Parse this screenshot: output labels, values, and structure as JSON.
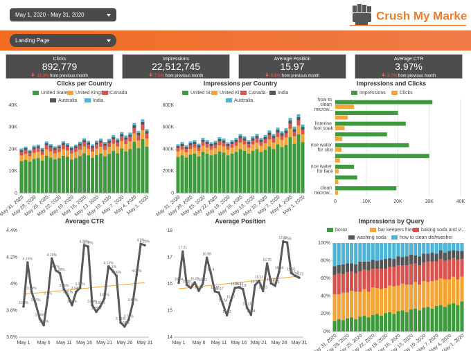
{
  "date_range": "May 1, 2020 - May 31, 2020",
  "logo": "Crush My Market",
  "filter": "Landing Page",
  "scorecards": [
    {
      "title": "Clicks",
      "value": "892,779",
      "delta": "-11.3%",
      "note": "from previous month"
    },
    {
      "title": "Impressions",
      "value": "22,512,745",
      "delta": "-7.5%",
      "note": "from previous month"
    },
    {
      "title": "Average Position",
      "value": "15.97",
      "delta": "-5.6%",
      "note": "from previous month"
    },
    {
      "title": "Average CTR",
      "value": "3.97%",
      "delta": "-3.7%",
      "note": "from previous month"
    }
  ],
  "chart_data": [
    {
      "type": "bar",
      "stacked": true,
      "title": "Clicks per Country",
      "categories": [
        "May 31, 2020",
        null,
        null,
        "May 28, 2020",
        null,
        null,
        "May 25, 2020",
        null,
        null,
        "May 22, 2020",
        null,
        null,
        "May 19, 2020",
        null,
        null,
        "May 16, 2020",
        null,
        null,
        "May 13, 2020",
        null,
        null,
        "May 10, 2020",
        null,
        null,
        "May 7, 2020",
        null,
        null,
        "May 4, 2020",
        null,
        null,
        "May 1, 2020"
      ],
      "series": [
        {
          "name": "United States",
          "color": "#3d9a3d",
          "values": [
            14500,
            15200,
            14300,
            15600,
            16000,
            14800,
            17000,
            16200,
            15400,
            15900,
            17100,
            16600,
            15300,
            16000,
            16900,
            18100,
            17200,
            16100,
            17300,
            18000,
            16800,
            17900,
            19200,
            18100,
            20300,
            19000,
            20100,
            23400,
            20500,
            24600,
            21200
          ]
        },
        {
          "name": "United Kingdom",
          "color": "#f4a535",
          "values": [
            2600,
            2700,
            2500,
            2700,
            2800,
            2600,
            2900,
            2800,
            2700,
            2800,
            2900,
            2800,
            2700,
            2800,
            2900,
            3100,
            3000,
            2800,
            3000,
            3100,
            2900,
            3100,
            3300,
            3100,
            3400,
            3300,
            3400,
            3800,
            3500,
            4000,
            3600
          ]
        },
        {
          "name": "Canada",
          "color": "#d9534f",
          "values": [
            1600,
            1700,
            1500,
            1700,
            1700,
            1600,
            1800,
            1700,
            1600,
            1700,
            1800,
            1700,
            1600,
            1700,
            1800,
            1900,
            1800,
            1700,
            1800,
            1900,
            1800,
            1900,
            2000,
            1900,
            2100,
            2000,
            2100,
            2400,
            2200,
            2500,
            2200
          ]
        },
        {
          "name": "Australia",
          "color": "#555555",
          "values": [
            900,
            900,
            800,
            900,
            900,
            900,
            1000,
            900,
            900,
            900,
            1000,
            900,
            900,
            900,
            1000,
            1000,
            1000,
            900,
            1000,
            1000,
            1000,
            1000,
            1100,
            1000,
            1100,
            1100,
            1100,
            1300,
            1200,
            1400,
            1200
          ]
        },
        {
          "name": "India",
          "color": "#4db6d8",
          "values": [
            700,
            700,
            600,
            700,
            700,
            700,
            800,
            700,
            700,
            700,
            800,
            700,
            700,
            700,
            800,
            800,
            800,
            700,
            800,
            800,
            800,
            800,
            900,
            800,
            900,
            900,
            900,
            1000,
            900,
            1100,
            900
          ]
        }
      ],
      "ylim": [
        0,
        40000
      ],
      "yticks": [
        0,
        {
          "value": 10000,
          "label": "10K"
        },
        {
          "value": 20000,
          "label": "20K"
        },
        {
          "value": 30000,
          "label": "30K"
        },
        {
          "value": 40000,
          "label": "40K"
        }
      ]
    },
    {
      "type": "bar",
      "stacked": true,
      "title": "Impressions per Country",
      "categories": [
        "May 31, 2020",
        null,
        null,
        "May 28, 2020",
        null,
        null,
        "May 25, 2020",
        null,
        null,
        "May 22, 2020",
        null,
        null,
        "May 19, 2020",
        null,
        null,
        "May 16, 2020",
        null,
        null,
        "May 13, 2020",
        null,
        null,
        "May 10, 2020",
        null,
        null,
        "May 7, 2020",
        null,
        null,
        "May 4, 2020",
        null,
        null,
        "May 1, 2020"
      ],
      "series": [
        {
          "name": "United St...",
          "color": "#3d9a3d",
          "values": [
            330000,
            345000,
            325000,
            350000,
            360000,
            335000,
            375000,
            360000,
            345000,
            355000,
            380000,
            370000,
            345000,
            360000,
            375000,
            400000,
            385000,
            360000,
            385000,
            400000,
            375000,
            395000,
            425000,
            400000,
            445000,
            420000,
            440000,
            510000,
            450000,
            535000,
            465000
          ]
        },
        {
          "name": "United Ki...",
          "color": "#f4a535",
          "values": [
            50000,
            52000,
            48000,
            52000,
            54000,
            50000,
            56000,
            54000,
            52000,
            53000,
            57000,
            55000,
            52000,
            54000,
            56000,
            60000,
            58000,
            54000,
            58000,
            60000,
            56000,
            59000,
            64000,
            60000,
            66000,
            63000,
            66000,
            76000,
            67000,
            80000,
            70000
          ]
        },
        {
          "name": "Canada",
          "color": "#d9534f",
          "values": [
            30000,
            31000,
            29000,
            31000,
            32000,
            30000,
            33000,
            32000,
            31000,
            32000,
            34000,
            33000,
            31000,
            32000,
            33000,
            36000,
            34000,
            32000,
            34000,
            36000,
            33000,
            35000,
            38000,
            36000,
            39000,
            37000,
            39000,
            45000,
            40000,
            47000,
            41000
          ]
        },
        {
          "name": "India",
          "color": "#555555",
          "values": [
            20000,
            21000,
            19000,
            21000,
            21000,
            20000,
            22000,
            21000,
            20000,
            21000,
            22000,
            22000,
            20000,
            21000,
            22000,
            24000,
            23000,
            21000,
            23000,
            24000,
            22000,
            23000,
            25000,
            24000,
            26000,
            25000,
            26000,
            30000,
            27000,
            32000,
            28000
          ]
        },
        {
          "name": "Australia",
          "color": "#4db6d8",
          "values": [
            15000,
            16000,
            14000,
            16000,
            16000,
            15000,
            17000,
            16000,
            15000,
            16000,
            17000,
            16000,
            15000,
            16000,
            17000,
            18000,
            17000,
            16000,
            17000,
            18000,
            17000,
            18000,
            19000,
            18000,
            20000,
            19000,
            20000,
            23000,
            21000,
            24000,
            21000
          ]
        }
      ],
      "ylim": [
        0,
        800000
      ],
      "yticks": [
        0,
        {
          "value": 200000,
          "label": "200K"
        },
        {
          "value": 400000,
          "label": "400K"
        },
        {
          "value": 600000,
          "label": "600K"
        },
        {
          "value": 800000,
          "label": "800K"
        }
      ]
    },
    {
      "type": "bar",
      "orientation": "horizontal",
      "title": "Impressions and Clicks",
      "categories": [
        "how to clean microw...",
        null,
        "listerine foot soak",
        null,
        "rice water for skin",
        null,
        "rice water for face",
        null,
        "clean microw..."
      ],
      "series": [
        {
          "name": "Impressions",
          "color": "#3d9a3d",
          "values": [
            31000,
            20000,
            22500,
            16500,
            23500,
            30000,
            6000,
            7000,
            19500
          ]
        },
        {
          "name": "Clicks",
          "color": "#f4a535",
          "values": [
            6000,
            4000,
            3000,
            2200,
            2000,
            1500,
            1100,
            1000,
            900
          ]
        }
      ],
      "xlim": [
        0,
        40000
      ],
      "xticks": [
        0,
        {
          "value": 10000,
          "label": "10K"
        },
        {
          "value": 20000,
          "label": "20K"
        },
        {
          "value": 30000,
          "label": "30K"
        },
        {
          "value": 40000,
          "label": "40K"
        }
      ],
      "grid": true
    },
    {
      "type": "line",
      "title": "Average CTR",
      "color": "#595959",
      "trend_color": "#f4a535",
      "categories": [
        "May 1",
        null,
        null,
        null,
        null,
        "May 6",
        null,
        null,
        null,
        null,
        "May 11",
        null,
        null,
        null,
        null,
        "May 16",
        null,
        null,
        null,
        null,
        "May 21",
        null,
        null,
        null,
        null,
        "May 26",
        null,
        null,
        null,
        null,
        "May 31"
      ],
      "values": [
        3.83,
        4.16,
        3.94,
        3.85,
        3.74,
        3.69,
        3.9,
        4.19,
        4.1,
        4.08,
        3.96,
        3.91,
        3.84,
        3.94,
        3.97,
        4.29,
        4.28,
        3.84,
        3.79,
        3.83,
        3.89,
        4.13,
        4.1,
        4.06,
        3.71,
        3.68,
        3.73,
        3.85,
        4.07,
        4.3,
        4.29
      ],
      "value_labels": [
        "3.83%",
        "4.16%",
        "3.94%",
        "3.85%",
        "3.74%",
        "3.69%",
        "3.9%",
        "4.19%",
        "4.1%",
        "4.08%",
        "3.96%",
        "3.91%",
        "3.84%",
        "3.94%",
        "3.97%",
        "4.29%",
        "4.28%",
        "3.84%",
        "3.79%",
        "3.83%",
        "3.89%",
        "4.13%",
        "4.1%",
        "4.06%",
        "3.71%",
        "3.68%",
        "3.73%",
        "3.85%",
        "4.07%",
        "4.3%",
        "4.29%"
      ],
      "ylim": [
        3.6,
        4.4
      ],
      "yticks": [
        {
          "value": 3.6,
          "label": "3.6%"
        },
        {
          "value": 3.8,
          "label": "3.8%"
        },
        {
          "value": 4,
          "label": "4%"
        },
        {
          "value": 4.2,
          "label": "4.2%"
        },
        {
          "value": 4.4,
          "label": "4.4%"
        }
      ]
    },
    {
      "type": "line",
      "title": "Average Position",
      "color": "#595959",
      "trend_color": "#f4a535",
      "categories": [
        "May 1",
        null,
        null,
        null,
        null,
        "May 6",
        null,
        null,
        null,
        null,
        "May 11",
        null,
        null,
        null,
        null,
        "May 16",
        null,
        null,
        null,
        null,
        "May 21",
        null,
        null,
        null,
        null,
        "May 26",
        null,
        null,
        null,
        null,
        "May 31"
      ],
      "values": [
        16.04,
        17.21,
        15.96,
        15.85,
        16.05,
        15.74,
        16.01,
        16.98,
        16.4,
        15.72,
        15.67,
        15.24,
        14.82,
        15.37,
        15.85,
        15.87,
        15.8,
        15.11,
        14.84,
        15.95,
        16.11,
        15.73,
        16.76,
        16.02,
        15.93,
        16.46,
        17.59,
        17.55,
        16.41,
        16.3,
        16.23
      ],
      "ylim": [
        14,
        18
      ],
      "yticks": [
        14,
        15,
        16,
        17,
        18
      ]
    },
    {
      "type": "bar",
      "stacked": true,
      "title": "Impressions by Query",
      "categories": [
        "May 31, 2020",
        null,
        null,
        "May 28, 2020",
        null,
        null,
        "May 25, 2020",
        null,
        null,
        "May 22, 2020",
        null,
        null,
        "May 19, 2020",
        null,
        null,
        "May 16, 2020",
        null,
        null,
        "May 13, 2020",
        null,
        null,
        "May 10, 2020",
        null,
        null,
        "May 7, 2020",
        null,
        null,
        "May 4, 2020",
        null,
        null,
        "May 1, 2020"
      ],
      "series": [
        {
          "name": "borax",
          "color": "#3d9a3d",
          "values": [
            12,
            14,
            13,
            15,
            16,
            14,
            17,
            18,
            16,
            19,
            20,
            18,
            21,
            22,
            20,
            23,
            24,
            22,
            25,
            26,
            24,
            27,
            28,
            26,
            29,
            30,
            28,
            31,
            32,
            30,
            34
          ]
        },
        {
          "name": "bar keepers friend",
          "color": "#f4a535",
          "values": [
            30,
            28,
            31,
            29,
            30,
            31,
            28,
            30,
            29,
            31,
            29,
            30,
            28,
            30,
            31,
            29,
            30,
            31,
            28,
            30,
            29,
            30,
            28,
            31,
            29,
            30,
            31,
            28,
            30,
            29,
            28
          ]
        },
        {
          "name": "baking soda and vi...",
          "color": "#d9534f",
          "values": [
            22,
            24,
            21,
            23,
            22,
            21,
            23,
            22,
            24,
            21,
            22,
            23,
            22,
            21,
            22,
            23,
            21,
            22,
            23,
            21,
            22,
            21,
            23,
            22,
            21,
            22,
            21,
            22,
            21,
            22,
            20
          ]
        },
        {
          "name": "washing soda",
          "color": "#555555",
          "values": [
            10,
            9,
            11,
            10,
            9,
            10,
            11,
            9,
            10,
            10,
            9,
            10,
            11,
            10,
            9,
            10,
            9,
            10,
            11,
            9,
            10,
            10,
            9,
            10,
            9,
            10,
            9,
            10,
            9,
            10,
            9
          ]
        },
        {
          "name": "how to clean dishwasher",
          "color": "#4db6d8",
          "values": [
            26,
            25,
            24,
            23,
            23,
            24,
            21,
            21,
            21,
            19,
            20,
            19,
            18,
            17,
            18,
            15,
            16,
            15,
            13,
            14,
            15,
            12,
            12,
            11,
            12,
            8,
            11,
            9,
            8,
            9,
            9
          ]
        }
      ],
      "ylim": [
        0,
        100
      ],
      "yticks": [
        {
          "value": 0,
          "label": "0%"
        },
        {
          "value": 20,
          "label": "20%"
        },
        {
          "value": 40,
          "label": "40%"
        },
        {
          "value": 60,
          "label": "60%"
        },
        {
          "value": 80,
          "label": "80%"
        },
        {
          "value": 100,
          "label": "100%"
        }
      ]
    }
  ]
}
